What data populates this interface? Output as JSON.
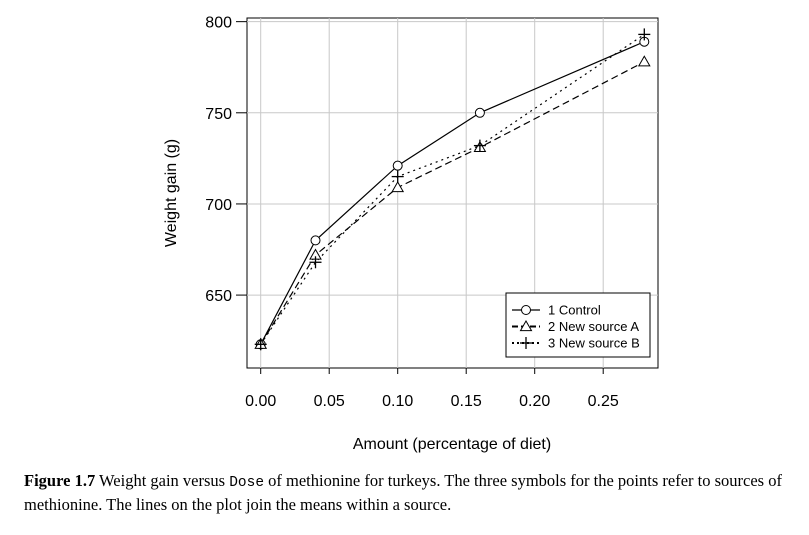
{
  "chart_data": {
    "type": "line",
    "xlabel": "Amount (percentage of diet)",
    "ylabel": "Weight gain (g)",
    "xlim": [
      -0.01,
      0.29
    ],
    "ylim": [
      610,
      802
    ],
    "xticks": [
      0.0,
      0.05,
      0.1,
      0.15,
      0.2,
      0.25
    ],
    "xtick_labels": [
      "0.00",
      "0.05",
      "0.10",
      "0.15",
      "0.20",
      "0.25"
    ],
    "yticks": [
      650,
      700,
      750,
      800
    ],
    "ytick_labels": [
      "650",
      "700",
      "750",
      "800"
    ],
    "grid": true,
    "legend_position": "bottom-right",
    "x": [
      0.0,
      0.04,
      0.1,
      0.16,
      0.28
    ],
    "series": [
      {
        "name": "1 Control",
        "marker": "circle",
        "line": "solid",
        "values": [
          623,
          680,
          721,
          750,
          789
        ]
      },
      {
        "name": "2 New source A",
        "marker": "triangle",
        "line": "dashed",
        "values": [
          623,
          672,
          709,
          731,
          778
        ]
      },
      {
        "name": "3 New source B",
        "marker": "plus",
        "line": "dotted",
        "values": [
          623,
          668,
          715,
          732,
          793
        ]
      }
    ]
  },
  "caption": {
    "label": "Figure 1.7",
    "text_before": " Weight gain versus ",
    "code": "Dose",
    "text_after": " of methionine for turkeys. The three symbols for the points refer to sources of methionine. The lines on the plot join the means within a source."
  }
}
